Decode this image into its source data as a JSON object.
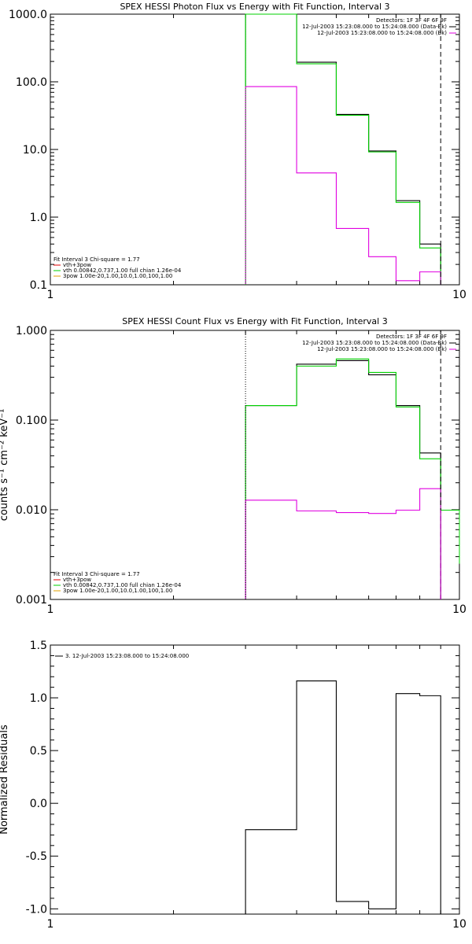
{
  "chart_data": [
    {
      "type": "line",
      "title": "SPEX HESSI Photon Flux vs Energy with Fit Function, Interval 3",
      "ylabel": "",
      "xlabel": "",
      "x_scale": "log",
      "y_scale": "log",
      "xlim": [
        1,
        10
      ],
      "ylim": [
        0.1,
        1000
      ],
      "xticks": [
        1,
        10
      ],
      "xtick_labels": [
        "1",
        "10"
      ],
      "yticks": [
        0.1,
        1,
        10,
        100,
        1000
      ],
      "ytick_labels": [
        "0.1",
        "1.0",
        "10.0",
        "100.0",
        "1000.0"
      ],
      "edges": [
        3,
        4,
        5,
        6,
        7,
        8,
        9
      ],
      "series": [
        {
          "color": "#000000",
          "style": "step",
          "values": [
            1000,
            195,
            33,
            9.5,
            1.75,
            0.4
          ]
        },
        {
          "color": "#00d000",
          "style": "step",
          "values": [
            1000,
            185,
            32,
            9.2,
            1.65,
            0.35
          ]
        },
        {
          "color": "#e000e0",
          "style": "step",
          "values": [
            85,
            4.5,
            0.68,
            0.26,
            0.115,
            0.155
          ]
        }
      ],
      "vlines": [
        {
          "x": 3,
          "color": "#00d000",
          "style": "dotted"
        },
        {
          "x": 9,
          "color": "#000000",
          "style": "dashed"
        }
      ],
      "legend_top_right": [
        "Detectors: 1F 3F 4F 6F 9F",
        "12-Jul-2003 15:23:08.000 to 15:24:08.000 (Data-Bk)",
        "12-Jul-2003 15:23:08.000 to 15:24:08.000 (Bk)"
      ],
      "legend_top_right_colors": [
        "#000000",
        "#000000",
        "#e000e0"
      ],
      "legend_bottom_left_title": "Fit Interval 3   Chi-square = 1.77",
      "legend_bottom_left": [
        {
          "label": "vth+3pow",
          "color": "#e00000"
        },
        {
          "label": "vth 0.00842,0.737,1.00   full chian 1.26e-04",
          "color": "#00d000"
        },
        {
          "label": "3pow 1.00e-20,1.00,10.0,1.00,100,1.00",
          "color": "#e0a000"
        }
      ]
    },
    {
      "type": "line",
      "title": "SPEX HESSI Count Flux vs Energy with Fit Function, Interval 3",
      "ylabel": "counts s⁻¹ cm⁻² keV⁻¹",
      "xlabel": "",
      "x_scale": "log",
      "y_scale": "log",
      "xlim": [
        1,
        10
      ],
      "ylim": [
        0.001,
        1
      ],
      "xticks": [
        1,
        10
      ],
      "xtick_labels": [
        "1",
        "10"
      ],
      "yticks": [
        0.001,
        0.01,
        0.1,
        1
      ],
      "ytick_labels": [
        "0.001",
        "0.010",
        "0.100",
        "1.000"
      ],
      "edges": [
        3,
        4,
        5,
        6,
        7,
        8,
        9
      ],
      "series": [
        {
          "color": "#000000",
          "style": "step",
          "values": [
            0.145,
            0.42,
            0.46,
            0.32,
            0.145,
            0.043
          ]
        },
        {
          "color": "#00d000",
          "style": "step",
          "values": [
            0.145,
            0.4,
            0.48,
            0.34,
            0.14,
            0.037
          ]
        },
        {
          "color": "#e000e0",
          "style": "step",
          "values": [
            0.0128,
            0.0097,
            0.0093,
            0.0091,
            0.0099,
            0.0172
          ]
        }
      ],
      "extra_steps": [
        {
          "color": "#00d000",
          "edges": [
            9,
            10
          ],
          "values": [
            0.0099
          ]
        }
      ],
      "vlines": [
        {
          "x": 3,
          "color": "#000000",
          "style": "dotted"
        },
        {
          "x": 9,
          "color": "#000000",
          "style": "dashed"
        },
        {
          "x": 9,
          "color": "#e000e0",
          "style": "dashed",
          "from": 0.001,
          "to": 0.0099
        },
        {
          "x": 10,
          "color": "#00d000",
          "style": "solid",
          "from": 0.0025,
          "to": 0.0099
        }
      ],
      "legend_top_right": [
        "Detectors: 1F 3F 4F 6F 9F",
        "12-Jul-2003 15:23:08.000 to 15:24:08.000 (Data-Bk)",
        "12-Jul-2003 15:23:08.000 to 15:24:08.000 (Bk)"
      ],
      "legend_top_right_colors": [
        "#000000",
        "#000000",
        "#e000e0"
      ],
      "legend_bottom_left_title": "Fit Interval 3   Chi-square = 1.77",
      "legend_bottom_left": [
        {
          "label": "vth+3pow",
          "color": "#e00000"
        },
        {
          "label": "vth 0.00842,0.737,1.00   full chian 1.26e-04",
          "color": "#00d000"
        },
        {
          "label": "3pow 1.00e-20,1.00,10.0,1.00,100,1.00",
          "color": "#e0a000"
        }
      ]
    },
    {
      "type": "line",
      "title": "",
      "ylabel": "Normalized Residuals",
      "xlabel": "",
      "x_scale": "log",
      "y_scale": "linear",
      "xlim": [
        1,
        10
      ],
      "ylim": [
        -1.05,
        1.5
      ],
      "xticks": [
        1,
        10
      ],
      "xtick_labels": [
        "1",
        "10"
      ],
      "yticks": [
        -1.0,
        -0.5,
        0.0,
        0.5,
        1.0,
        1.5
      ],
      "ytick_labels": [
        "-1.0",
        "-0.5",
        "0.0",
        "0.5",
        "1.0",
        "1.5"
      ],
      "edges": [
        3,
        4,
        5,
        6,
        7,
        8,
        9
      ],
      "series": [
        {
          "color": "#000000",
          "style": "step",
          "values": [
            -0.25,
            1.16,
            -0.93,
            -1.0,
            1.04,
            1.02
          ]
        }
      ],
      "vlines": [],
      "legend_top_left": [
        {
          "label": "3. 12-Jul-2003 15:23:08.000 to 15:24:08.000",
          "color": "#000000"
        }
      ]
    }
  ]
}
